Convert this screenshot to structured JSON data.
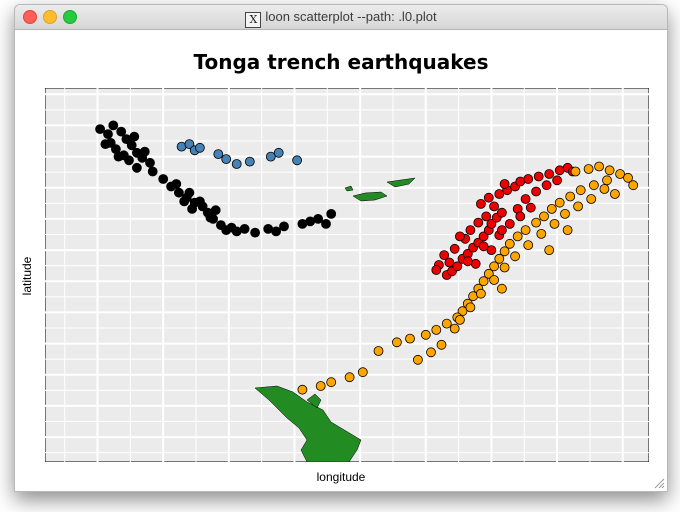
{
  "window": {
    "title": "loon scatterplot --path: .l0.plot",
    "icon": "x11-icon",
    "controls": [
      "close",
      "minimize",
      "maximize"
    ]
  },
  "chart_data": {
    "type": "scatter",
    "title": "Tonga trench earthquakes",
    "xlabel": "longitude",
    "ylabel": "latitude",
    "xlim": [
      165.5,
      188.5
    ],
    "ylim": [
      -39.5,
      -9.5
    ],
    "grid": true,
    "background": "#ebebeb",
    "tick_labels_visible": false,
    "series": [
      {
        "color": "#000000",
        "points": [
          [
            167.6,
            -12.8
          ],
          [
            168.1,
            -12.5
          ],
          [
            167.9,
            -13.2
          ],
          [
            168.4,
            -13.0
          ],
          [
            168.0,
            -13.9
          ],
          [
            168.6,
            -13.6
          ],
          [
            168.2,
            -14.4
          ],
          [
            168.8,
            -14.1
          ],
          [
            168.5,
            -14.9
          ],
          [
            169.0,
            -14.7
          ],
          [
            168.7,
            -15.3
          ],
          [
            169.2,
            -15.1
          ],
          [
            169.0,
            -15.9
          ],
          [
            169.6,
            -16.2
          ],
          [
            170.0,
            -16.8
          ],
          [
            170.3,
            -17.4
          ],
          [
            170.6,
            -17.9
          ],
          [
            170.9,
            -18.3
          ],
          [
            171.2,
            -18.7
          ],
          [
            171.0,
            -17.9
          ],
          [
            171.5,
            -19.0
          ],
          [
            171.7,
            -19.5
          ],
          [
            171.4,
            -18.6
          ],
          [
            171.9,
            -20.0
          ],
          [
            172.2,
            -20.5
          ],
          [
            172.4,
            -20.9
          ],
          [
            172.8,
            -21.0
          ],
          [
            173.1,
            -20.8
          ],
          [
            173.5,
            -21.1
          ],
          [
            174.0,
            -20.8
          ],
          [
            174.6,
            -20.6
          ],
          [
            175.3,
            -20.4
          ],
          [
            175.9,
            -20.0
          ],
          [
            176.4,
            -19.6
          ],
          [
            176.2,
            -20.4
          ],
          [
            175.6,
            -20.2
          ],
          [
            170.5,
            -17.2
          ],
          [
            169.5,
            -15.5
          ],
          [
            168.3,
            -15.0
          ],
          [
            171.8,
            -19.9
          ],
          [
            172.0,
            -19.3
          ],
          [
            167.8,
            -14.0
          ],
          [
            172.6,
            -20.7
          ],
          [
            174.3,
            -21.0
          ],
          [
            168.9,
            -13.4
          ],
          [
            169.3,
            -14.6
          ],
          [
            170.8,
            -18.6
          ],
          [
            171.1,
            -19.2
          ]
        ]
      },
      {
        "color": "#4682b4",
        "points": [
          [
            170.7,
            -14.2
          ],
          [
            171.0,
            -14.0
          ],
          [
            171.2,
            -14.5
          ],
          [
            171.4,
            -14.3
          ],
          [
            172.1,
            -14.8
          ],
          [
            172.4,
            -15.2
          ],
          [
            172.8,
            -15.6
          ],
          [
            173.3,
            -15.4
          ],
          [
            174.1,
            -15.0
          ],
          [
            174.4,
            -14.7
          ],
          [
            175.1,
            -15.3
          ]
        ]
      },
      {
        "color": "#ee0000",
        "points": [
          [
            180.8,
            -24.5
          ],
          [
            181.0,
            -24.2
          ],
          [
            180.9,
            -23.5
          ],
          [
            181.2,
            -23.8
          ],
          [
            181.4,
            -23.2
          ],
          [
            181.6,
            -22.8
          ],
          [
            181.8,
            -22.3
          ],
          [
            182.0,
            -21.9
          ],
          [
            181.5,
            -21.6
          ],
          [
            182.2,
            -21.4
          ],
          [
            182.4,
            -20.9
          ],
          [
            182.5,
            -20.4
          ],
          [
            182.7,
            -19.9
          ],
          [
            182.9,
            -19.5
          ],
          [
            182.6,
            -19.0
          ],
          [
            182.1,
            -18.8
          ],
          [
            182.4,
            -18.3
          ],
          [
            182.8,
            -18.0
          ],
          [
            183.1,
            -17.7
          ],
          [
            183.4,
            -17.4
          ],
          [
            183.0,
            -17.2
          ],
          [
            183.6,
            -17.0
          ],
          [
            183.9,
            -16.8
          ],
          [
            184.3,
            -16.6
          ],
          [
            184.7,
            -16.4
          ],
          [
            185.1,
            -16.1
          ],
          [
            185.4,
            -15.9
          ],
          [
            182.3,
            -19.8
          ],
          [
            182.0,
            -20.3
          ],
          [
            181.7,
            -20.9
          ],
          [
            181.3,
            -21.4
          ],
          [
            181.1,
            -22.4
          ],
          [
            180.7,
            -22.9
          ],
          [
            181.9,
            -23.6
          ],
          [
            182.5,
            -22.5
          ],
          [
            182.8,
            -21.3
          ],
          [
            183.2,
            -20.4
          ],
          [
            183.5,
            -19.2
          ],
          [
            183.8,
            -18.4
          ],
          [
            184.2,
            -17.8
          ],
          [
            184.6,
            -17.3
          ],
          [
            185.0,
            -16.9
          ],
          [
            185.6,
            -16.2
          ],
          [
            184.0,
            -19.1
          ],
          [
            183.6,
            -19.8
          ],
          [
            182.9,
            -20.9
          ],
          [
            182.2,
            -22.2
          ],
          [
            181.6,
            -23.4
          ],
          [
            180.5,
            -23.7
          ],
          [
            180.4,
            -24.1
          ]
        ]
      },
      {
        "color": "#ffa500",
        "points": [
          [
            185.7,
            -16.2
          ],
          [
            186.2,
            -16.0
          ],
          [
            186.6,
            -15.8
          ],
          [
            187.0,
            -16.1
          ],
          [
            187.4,
            -16.4
          ],
          [
            187.7,
            -16.7
          ],
          [
            186.9,
            -16.9
          ],
          [
            186.4,
            -17.3
          ],
          [
            185.9,
            -17.7
          ],
          [
            185.5,
            -18.2
          ],
          [
            185.1,
            -18.7
          ],
          [
            184.8,
            -19.2
          ],
          [
            184.5,
            -19.8
          ],
          [
            184.2,
            -20.3
          ],
          [
            183.8,
            -20.9
          ],
          [
            183.5,
            -21.4
          ],
          [
            183.2,
            -22.0
          ],
          [
            183.0,
            -22.6
          ],
          [
            182.8,
            -23.2
          ],
          [
            182.6,
            -23.8
          ],
          [
            182.4,
            -24.4
          ],
          [
            182.2,
            -25.0
          ],
          [
            182.0,
            -25.6
          ],
          [
            181.8,
            -26.2
          ],
          [
            181.6,
            -26.8
          ],
          [
            181.4,
            -27.4
          ],
          [
            181.2,
            -27.9
          ],
          [
            180.8,
            -28.4
          ],
          [
            180.4,
            -28.9
          ],
          [
            180.0,
            -29.3
          ],
          [
            179.4,
            -29.6
          ],
          [
            178.9,
            -29.9
          ],
          [
            178.2,
            -30.6
          ],
          [
            177.6,
            -32.3
          ],
          [
            177.1,
            -32.7
          ],
          [
            176.4,
            -33.1
          ],
          [
            176.0,
            -33.4
          ],
          [
            175.3,
            -33.7
          ],
          [
            186.8,
            -17.6
          ],
          [
            186.3,
            -18.4
          ],
          [
            185.8,
            -19.0
          ],
          [
            185.3,
            -19.6
          ],
          [
            184.9,
            -20.4
          ],
          [
            184.4,
            -21.2
          ],
          [
            183.9,
            -22.1
          ],
          [
            183.4,
            -23.0
          ],
          [
            183.0,
            -23.9
          ],
          [
            182.6,
            -24.9
          ],
          [
            182.1,
            -26.0
          ],
          [
            181.7,
            -27.1
          ],
          [
            181.3,
            -28.1
          ],
          [
            187.9,
            -17.3
          ],
          [
            187.2,
            -18.0
          ],
          [
            185.4,
            -20.9
          ],
          [
            184.7,
            -22.5
          ],
          [
            182.9,
            -25.6
          ],
          [
            181.1,
            -28.8
          ],
          [
            180.6,
            -30.1
          ],
          [
            180.2,
            -30.7
          ],
          [
            179.7,
            -31.3
          ]
        ]
      }
    ],
    "map_color": "#228b22"
  }
}
